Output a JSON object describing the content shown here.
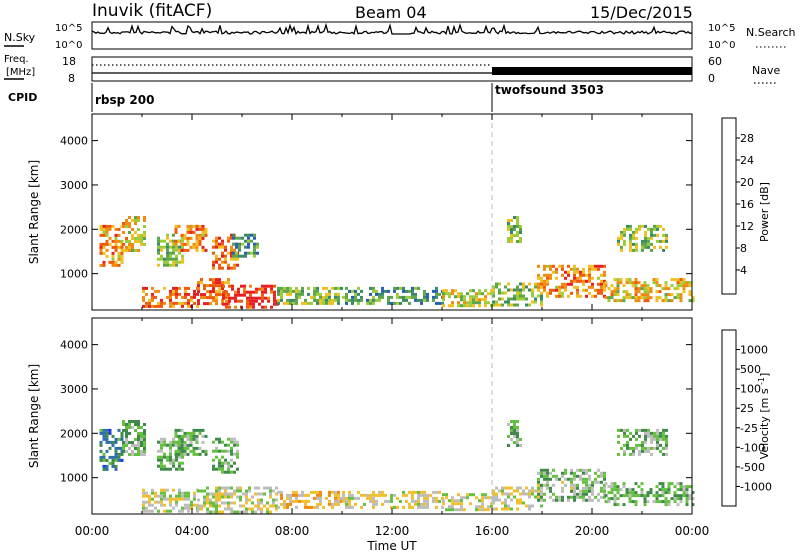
{
  "header": {
    "station": "Inuvik (fitACF)",
    "beam": "Beam 04",
    "date": "15/Dec/2015"
  },
  "top_panels": {
    "nsky_label": "N.Sky",
    "nsky_ticks": [
      "10^5",
      "10^0"
    ],
    "nsearch_label": "N.Search",
    "freq_label_line1": "Freq.",
    "freq_label_line2": "[MHz]",
    "freq_ticks": [
      "18",
      "8"
    ],
    "nave_label": "Nave",
    "nave_ticks": [
      "60",
      "0"
    ],
    "cpid_label": "CPID",
    "cpid_segments": [
      {
        "name": "rbsp 200",
        "start_hour": 0,
        "end_hour": 16
      },
      {
        "name": "twofsound 3503",
        "start_hour": 16,
        "end_hour": 24
      }
    ]
  },
  "colors": {
    "power_scale": [
      "#1a1aff",
      "#2a5fb0",
      "#3a8a6a",
      "#5ca54b",
      "#9ccc3a",
      "#f0c020",
      "#f08a10",
      "#f05a0a",
      "#e62020"
    ],
    "velocity_scale": [
      "#1a3fcf",
      "#2f6fae",
      "#3f8a4a",
      "#66c040",
      "#bdbdbd",
      "#f0c030",
      "#f08a10",
      "#f05010",
      "#e41a1a"
    ]
  },
  "chart_data": [
    {
      "type": "heatmap",
      "name": "power",
      "ylabel": "Slant Range [km]",
      "xlabel": "Time UT",
      "x_ticks": [
        "00:00",
        "04:00",
        "08:00",
        "12:00",
        "16:00",
        "20:00",
        "00:00"
      ],
      "xlim_hours": [
        0,
        24
      ],
      "y_ticks": [
        1000,
        2000,
        3000,
        4000
      ],
      "ylim": [
        180,
        4600
      ],
      "colorbar_label": "Power [dB]",
      "colorbar_ticks": [
        "4",
        "8",
        "12",
        "16",
        "20",
        "24",
        "28"
      ],
      "clim": [
        0,
        30
      ],
      "regions": [
        {
          "t0": 0.3,
          "t1": 1.2,
          "r0": 1200,
          "r1": 2100,
          "level": 22
        },
        {
          "t0": 1.2,
          "t1": 2.1,
          "r0": 1500,
          "r1": 2300,
          "level": 18
        },
        {
          "t0": 2.6,
          "t1": 3.6,
          "r0": 1200,
          "r1": 1900,
          "level": 14
        },
        {
          "t0": 3.3,
          "t1": 4.6,
          "r0": 1500,
          "r1": 2100,
          "level": 22
        },
        {
          "t0": 4.8,
          "t1": 5.8,
          "r0": 1100,
          "r1": 1900,
          "level": 24
        },
        {
          "t0": 5.6,
          "t1": 6.6,
          "r0": 1400,
          "r1": 1900,
          "level": 10
        },
        {
          "t0": 2.0,
          "t1": 4.2,
          "r0": 250,
          "r1": 700,
          "level": 24
        },
        {
          "t0": 4.2,
          "t1": 5.5,
          "r0": 300,
          "r1": 900,
          "level": 24
        },
        {
          "t0": 5.2,
          "t1": 7.4,
          "r0": 250,
          "r1": 750,
          "level": 28
        },
        {
          "t0": 7.4,
          "t1": 10.0,
          "r0": 300,
          "r1": 700,
          "level": 14
        },
        {
          "t0": 10.0,
          "t1": 14.0,
          "r0": 300,
          "r1": 700,
          "level": 10
        },
        {
          "t0": 14.0,
          "t1": 16.0,
          "r0": 250,
          "r1": 650,
          "level": 16
        },
        {
          "t0": 16.0,
          "t1": 18.0,
          "r0": 300,
          "r1": 800,
          "level": 14
        },
        {
          "t0": 17.8,
          "t1": 20.5,
          "r0": 500,
          "r1": 1200,
          "level": 22
        },
        {
          "t0": 20.5,
          "t1": 24.0,
          "r0": 400,
          "r1": 900,
          "level": 18
        },
        {
          "t0": 21.0,
          "t1": 23.0,
          "r0": 1500,
          "r1": 2100,
          "level": 14
        },
        {
          "t0": 16.6,
          "t1": 17.2,
          "r0": 1700,
          "r1": 2300,
          "level": 12
        }
      ]
    },
    {
      "type": "heatmap",
      "name": "velocity",
      "ylabel": "Slant Range [km]",
      "xlabel": "Time UT",
      "x_ticks": [
        "00:00",
        "04:00",
        "08:00",
        "12:00",
        "16:00",
        "20:00",
        "00:00"
      ],
      "xlim_hours": [
        0,
        24
      ],
      "y_ticks": [
        1000,
        2000,
        3000,
        4000
      ],
      "ylim": [
        180,
        4600
      ],
      "colorbar_label": "Velocity [m s^-1]",
      "colorbar_ticks": [
        "1000",
        "500",
        "100",
        "25",
        "-25",
        "-100",
        "-500",
        "-1000"
      ],
      "clim": [
        -1250,
        1250
      ],
      "regions": [
        {
          "t0": 0.3,
          "t1": 1.2,
          "r0": 1200,
          "r1": 2100,
          "level": -700
        },
        {
          "t0": 1.2,
          "t1": 2.1,
          "r0": 1500,
          "r1": 2300,
          "level": -300
        },
        {
          "t0": 2.6,
          "t1": 3.6,
          "r0": 1200,
          "r1": 1900,
          "level": -300
        },
        {
          "t0": 3.3,
          "t1": 4.6,
          "r0": 1500,
          "r1": 2100,
          "level": -300
        },
        {
          "t0": 4.8,
          "t1": 5.8,
          "r0": 1100,
          "r1": 1900,
          "level": -300
        },
        {
          "t0": 2.0,
          "t1": 4.2,
          "r0": 250,
          "r1": 750,
          "level": 0
        },
        {
          "t0": 4.2,
          "t1": 7.4,
          "r0": 250,
          "r1": 800,
          "level": 0
        },
        {
          "t0": 7.4,
          "t1": 10.0,
          "r0": 300,
          "r1": 700,
          "level": 300
        },
        {
          "t0": 10.0,
          "t1": 14.0,
          "r0": 300,
          "r1": 700,
          "level": 60
        },
        {
          "t0": 14.0,
          "t1": 16.0,
          "r0": 250,
          "r1": 650,
          "level": 60
        },
        {
          "t0": 16.0,
          "t1": 18.0,
          "r0": 300,
          "r1": 800,
          "level": 60
        },
        {
          "t0": 17.8,
          "t1": 20.5,
          "r0": 500,
          "r1": 1200,
          "level": -200
        },
        {
          "t0": 20.5,
          "t1": 24.0,
          "r0": 400,
          "r1": 900,
          "level": -300
        },
        {
          "t0": 21.0,
          "t1": 23.0,
          "r0": 1500,
          "r1": 2100,
          "level": -300
        },
        {
          "t0": 16.6,
          "t1": 17.2,
          "r0": 1700,
          "r1": 2300,
          "level": -300
        }
      ]
    }
  ]
}
